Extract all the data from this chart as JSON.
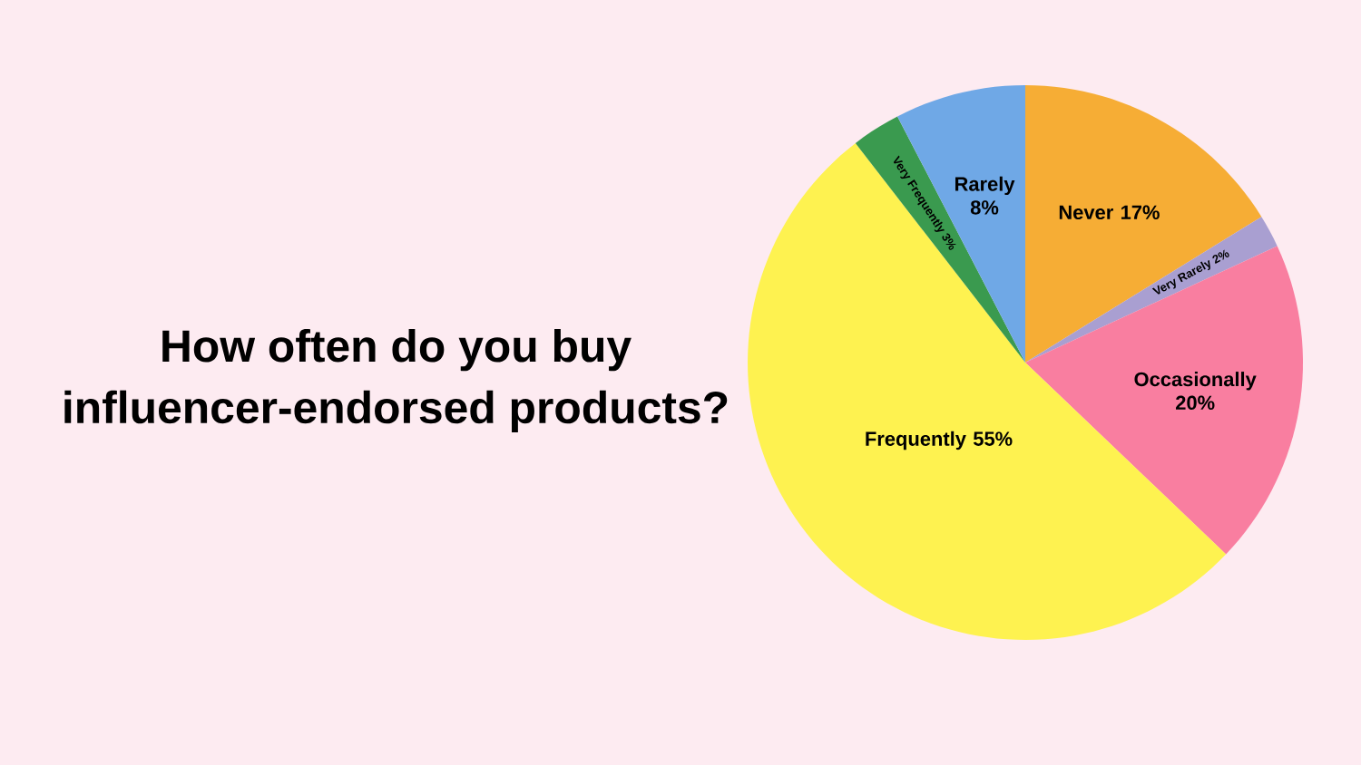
{
  "chart_data": {
    "type": "pie",
    "title": "How often do you buy influencer-endorsed products?",
    "categories": [
      "Never",
      "Very Rarely",
      "Occasionally",
      "Frequently",
      "Very Frequently",
      "Rarely"
    ],
    "values": [
      17,
      2,
      20,
      55,
      3,
      8
    ],
    "value_labels": [
      "17%",
      "2%",
      "20%",
      "55%",
      "3%",
      "8%"
    ],
    "colors": [
      "#f6ad35",
      "#a99fd1",
      "#f97ea0",
      "#fef250",
      "#3a9a4f",
      "#6fa8e6"
    ]
  }
}
